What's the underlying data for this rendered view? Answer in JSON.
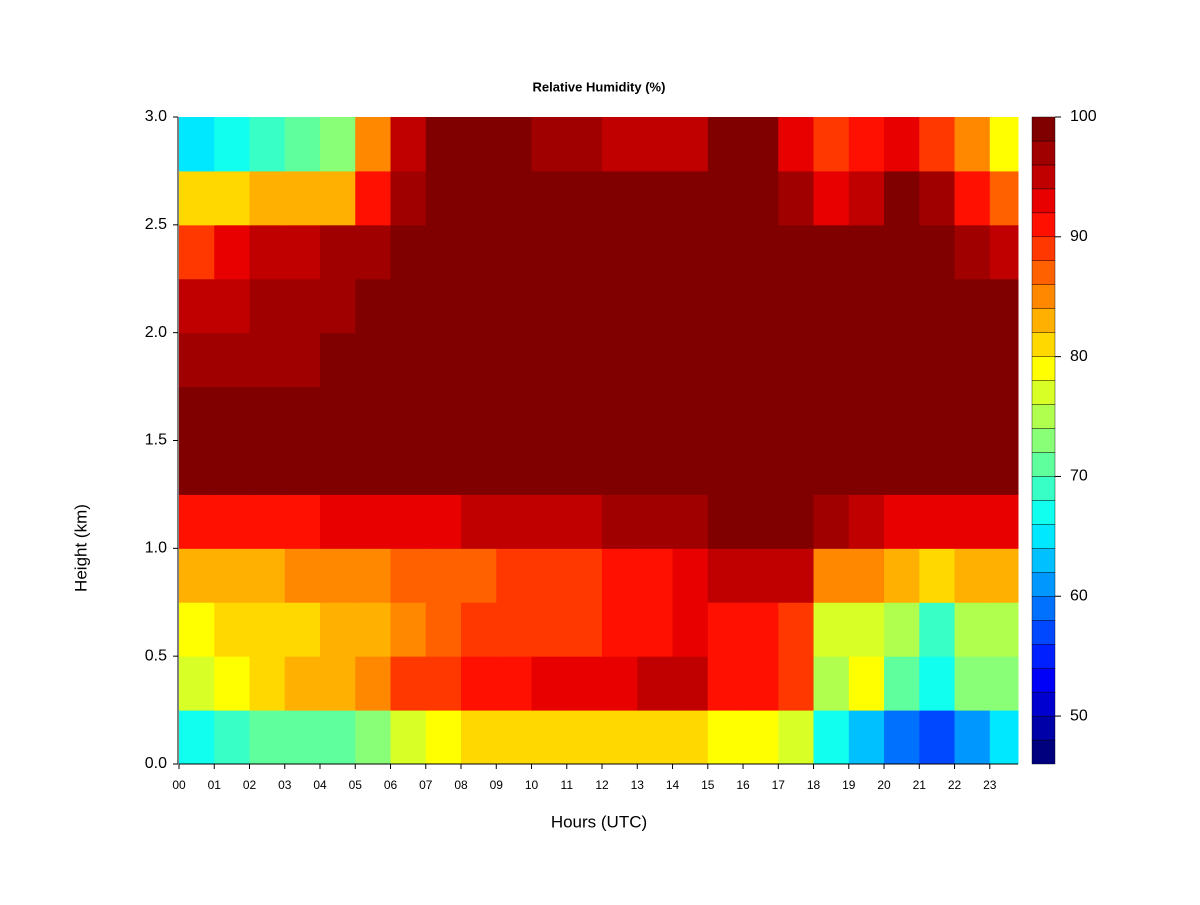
{
  "chart_data": {
    "type": "heatmap",
    "title": "Relative Humidity (%)",
    "x_label": "Hours (UTC)",
    "y_label": "Height (km)",
    "x": [
      0,
      1,
      2,
      3,
      4,
      5,
      6,
      7,
      8,
      9,
      10,
      11,
      12,
      13,
      14,
      15,
      16,
      17,
      18,
      19,
      20,
      21,
      22,
      23
    ],
    "y": [
      0,
      0.25,
      0.5,
      0.75,
      1,
      1.25,
      1.5,
      1.75,
      2,
      2.25,
      2.5,
      2.75
    ],
    "values": [
      [
        66,
        68,
        70,
        70,
        70,
        72,
        76,
        78,
        80,
        80,
        80,
        80,
        80,
        80,
        80,
        78,
        78,
        76,
        66,
        62,
        58,
        56,
        60,
        64
      ],
      [
        76,
        78,
        80,
        82,
        82,
        84,
        88,
        88,
        90,
        90,
        92,
        92,
        92,
        94,
        94,
        90,
        90,
        88,
        74,
        78,
        70,
        66,
        72,
        72
      ],
      [
        78,
        80,
        80,
        80,
        82,
        82,
        84,
        86,
        88,
        88,
        88,
        88,
        90,
        90,
        92,
        90,
        90,
        88,
        76,
        76,
        74,
        68,
        74,
        74
      ],
      [
        82,
        82,
        82,
        84,
        84,
        84,
        86,
        86,
        86,
        88,
        88,
        88,
        90,
        90,
        92,
        94,
        94,
        94,
        84,
        84,
        82,
        80,
        82,
        82
      ],
      [
        90,
        90,
        90,
        90,
        92,
        92,
        92,
        92,
        94,
        94,
        94,
        94,
        96,
        96,
        96,
        98,
        100,
        100,
        96,
        94,
        92,
        92,
        92,
        92
      ],
      [
        98,
        98,
        98,
        98,
        98,
        98,
        98,
        98,
        100,
        100,
        100,
        100,
        100,
        100,
        100,
        100,
        100,
        100,
        100,
        100,
        100,
        100,
        100,
        100
      ],
      [
        98,
        98,
        98,
        98,
        98,
        98,
        100,
        100,
        100,
        100,
        100,
        100,
        100,
        100,
        100,
        100,
        100,
        100,
        100,
        100,
        100,
        100,
        100,
        100
      ],
      [
        96,
        96,
        96,
        96,
        98,
        98,
        98,
        100,
        100,
        100,
        100,
        100,
        100,
        100,
        100,
        100,
        100,
        100,
        100,
        100,
        100,
        100,
        100,
        100
      ],
      [
        94,
        94,
        96,
        96,
        96,
        98,
        98,
        100,
        100,
        100,
        100,
        100,
        100,
        100,
        100,
        100,
        100,
        100,
        100,
        100,
        100,
        100,
        100,
        100
      ],
      [
        88,
        92,
        94,
        94,
        96,
        96,
        98,
        100,
        100,
        100,
        100,
        100,
        100,
        100,
        100,
        100,
        100,
        100,
        100,
        100,
        98,
        98,
        96,
        94
      ],
      [
        80,
        80,
        82,
        82,
        82,
        90,
        96,
        98,
        100,
        100,
        100,
        100,
        98,
        98,
        98,
        100,
        100,
        96,
        92,
        94,
        98,
        96,
        90,
        86
      ],
      [
        64,
        66,
        68,
        70,
        72,
        84,
        94,
        98,
        100,
        100,
        96,
        96,
        94,
        94,
        94,
        98,
        100,
        92,
        88,
        90,
        92,
        88,
        84,
        78
      ]
    ],
    "xlim": [
      0,
      23.8
    ],
    "xticks": [
      {
        "value": 0,
        "label": "00"
      },
      {
        "value": 1,
        "label": "01"
      },
      {
        "value": 2,
        "label": "02"
      },
      {
        "value": 3,
        "label": "03"
      },
      {
        "value": 4,
        "label": "04"
      },
      {
        "value": 5,
        "label": "05"
      },
      {
        "value": 6,
        "label": "06"
      },
      {
        "value": 7,
        "label": "07"
      },
      {
        "value": 8,
        "label": "08"
      },
      {
        "value": 9,
        "label": "09"
      },
      10,
      11,
      12,
      13,
      14,
      15,
      16,
      17,
      18,
      19,
      20,
      21,
      22,
      23
    ],
    "ylim": [
      0,
      3
    ],
    "yticks": [
      {
        "value": 0,
        "label": "0.0"
      },
      0.5,
      {
        "value": 1,
        "label": "1.0"
      },
      1.5,
      {
        "value": 2,
        "label": "2.0"
      },
      2.5,
      {
        "value": 3,
        "label": "3.0"
      }
    ],
    "zlim": [
      46,
      100
    ],
    "zticks": [
      50,
      60,
      70,
      80,
      90,
      100
    ],
    "level_step": 2,
    "colors": [
      "#00007f",
      "#0000a8",
      "#0000d0",
      "#0000f8",
      "#0020ff",
      "#0048ff",
      "#0070ff",
      "#0098ff",
      "#00c0ff",
      "#00e8ff",
      "#10ffee",
      "#38ffc6",
      "#60ff9e",
      "#88ff76",
      "#b0ff4e",
      "#d8ff26",
      "#ffff00",
      "#ffd800",
      "#ffb000",
      "#ff8800",
      "#ff6000",
      "#ff3800",
      "#ff1000",
      "#e80000",
      "#c00000",
      "#a00000",
      "#800000"
    ]
  }
}
